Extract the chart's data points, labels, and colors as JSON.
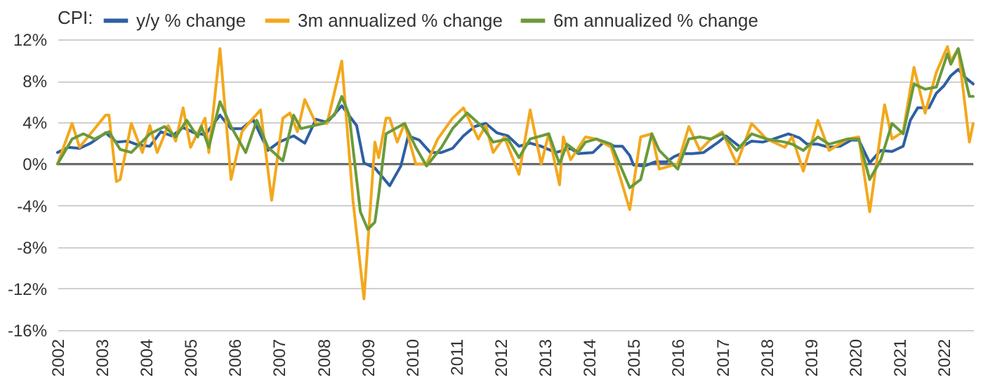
{
  "chart_data": {
    "type": "line",
    "legend_title": "CPI:",
    "legend": "top",
    "grid": "y",
    "marker": "none",
    "line_style": "solid",
    "xlim": [
      "2002-01",
      "2022-09"
    ],
    "xticks": [
      "2002",
      "2003",
      "2004",
      "2005",
      "2006",
      "2007",
      "2008",
      "2009",
      "2010",
      "2011",
      "2012",
      "2013",
      "2014",
      "2015",
      "2016",
      "2017",
      "2018",
      "2019",
      "2020",
      "2021",
      "2022"
    ],
    "ylim": [
      -16,
      12
    ],
    "yticks": [
      {
        "value": -16,
        "label": "-16%"
      },
      {
        "value": -12,
        "label": "-12%"
      },
      {
        "value": -8,
        "label": "-8%"
      },
      {
        "value": -4,
        "label": "-4%"
      },
      {
        "value": 0,
        "label": "0%"
      },
      {
        "value": 4,
        "label": "4%"
      },
      {
        "value": 8,
        "label": "8%"
      },
      {
        "value": 12,
        "label": "12%"
      }
    ],
    "ref_lines": [
      {
        "axis": "y",
        "value": 0,
        "color": "#595959"
      }
    ],
    "series": [
      {
        "name": "y/y % change",
        "color": "#2e5fa3",
        "x": [
          "2002-01",
          "2002-04",
          "2002-07",
          "2002-10",
          "2003-02",
          "2003-05",
          "2003-08",
          "2003-11",
          "2004-02",
          "2004-05",
          "2004-08",
          "2004-11",
          "2005-02",
          "2005-05",
          "2005-09",
          "2005-12",
          "2006-03",
          "2006-06",
          "2006-10",
          "2007-01",
          "2007-05",
          "2007-08",
          "2007-11",
          "2008-02",
          "2008-06",
          "2008-10",
          "2008-12",
          "2009-03",
          "2009-07",
          "2009-10",
          "2009-12",
          "2010-03",
          "2010-06",
          "2010-09",
          "2010-12",
          "2011-03",
          "2011-06",
          "2011-09",
          "2011-12",
          "2012-03",
          "2012-06",
          "2012-09",
          "2012-12",
          "2013-04",
          "2013-08",
          "2013-10",
          "2014-02",
          "2014-05",
          "2014-08",
          "2014-10",
          "2014-12",
          "2015-01",
          "2015-04",
          "2015-07",
          "2015-10",
          "2015-12",
          "2016-02",
          "2016-05",
          "2016-08",
          "2016-12",
          "2017-02",
          "2017-06",
          "2017-09",
          "2017-12",
          "2018-03",
          "2018-07",
          "2018-10",
          "2018-12",
          "2019-03",
          "2019-06",
          "2019-09",
          "2019-12",
          "2020-02",
          "2020-05",
          "2020-08",
          "2020-11",
          "2021-02",
          "2021-04",
          "2021-06",
          "2021-09",
          "2021-11",
          "2022-01",
          "2022-03",
          "2022-05",
          "2022-07",
          "2022-09"
        ],
        "values": [
          1.1,
          1.6,
          1.5,
          2.0,
          3.0,
          2.1,
          2.2,
          1.8,
          1.7,
          3.1,
          2.7,
          3.5,
          3.0,
          2.8,
          4.7,
          3.4,
          3.4,
          4.3,
          1.3,
          2.1,
          2.7,
          2.0,
          4.3,
          4.0,
          5.6,
          3.7,
          0.1,
          -0.4,
          -2.1,
          -0.2,
          2.7,
          2.3,
          1.1,
          1.1,
          1.5,
          2.7,
          3.6,
          3.9,
          3.0,
          2.7,
          1.7,
          2.0,
          1.7,
          1.1,
          1.5,
          1.0,
          1.1,
          2.1,
          1.7,
          1.7,
          0.8,
          -0.1,
          -0.2,
          0.2,
          0.2,
          0.7,
          1.0,
          1.0,
          1.1,
          2.1,
          2.7,
          1.6,
          2.2,
          2.1,
          2.4,
          2.9,
          2.5,
          1.9,
          1.9,
          1.6,
          1.7,
          2.3,
          2.3,
          0.1,
          1.3,
          1.2,
          1.7,
          4.2,
          5.4,
          5.4,
          6.8,
          7.5,
          8.5,
          9.1,
          8.3,
          7.7
        ]
      },
      {
        "name": "3m annualized % change",
        "color": "#f2a81d",
        "x": [
          "2002-01",
          "2002-05",
          "2002-07",
          "2002-09",
          "2003-02",
          "2003-03",
          "2003-05",
          "2003-06",
          "2003-09",
          "2003-12",
          "2004-02",
          "2004-04",
          "2004-07",
          "2004-09",
          "2004-11",
          "2005-01",
          "2005-05",
          "2005-06",
          "2005-09",
          "2005-12",
          "2006-03",
          "2006-05",
          "2006-08",
          "2006-11",
          "2007-02",
          "2007-04",
          "2007-06",
          "2007-08",
          "2007-11",
          "2008-02",
          "2008-06",
          "2008-09",
          "2008-12",
          "2009-03",
          "2009-04",
          "2009-06",
          "2009-07",
          "2009-09",
          "2009-11",
          "2010-02",
          "2010-05",
          "2010-08",
          "2010-12",
          "2011-03",
          "2011-07",
          "2011-09",
          "2011-11",
          "2012-02",
          "2012-06",
          "2012-09",
          "2012-12",
          "2013-02",
          "2013-05",
          "2013-06",
          "2013-08",
          "2013-12",
          "2014-03",
          "2014-07",
          "2014-12",
          "2015-03",
          "2015-06",
          "2015-08",
          "2016-01",
          "2016-04",
          "2016-07",
          "2016-10",
          "2017-01",
          "2017-05",
          "2017-09",
          "2018-01",
          "2018-06",
          "2018-08",
          "2018-11",
          "2019-03",
          "2019-06",
          "2019-11",
          "2020-02",
          "2020-05",
          "2020-09",
          "2020-11",
          "2021-02",
          "2021-05",
          "2021-08",
          "2021-11",
          "2022-02",
          "2022-03",
          "2022-05",
          "2022-08",
          "2022-09"
        ],
        "values": [
          0,
          3.9,
          1.6,
          2.5,
          4.7,
          4.7,
          -1.7,
          -1.5,
          3.9,
          1.1,
          3.7,
          1.1,
          3.7,
          2.2,
          5.4,
          1.6,
          4.4,
          1.1,
          11.1,
          -1.5,
          3.1,
          4.0,
          5.2,
          -3.5,
          4.4,
          4.9,
          3.1,
          6.2,
          3.9,
          3.9,
          9.9,
          -3.5,
          -13.0,
          2.1,
          0.6,
          4.4,
          4.4,
          2.1,
          3.9,
          0,
          0,
          2.4,
          4.4,
          5.4,
          2.4,
          3.7,
          1.1,
          2.6,
          -1.0,
          5.2,
          0,
          2.9,
          -2.0,
          2.6,
          0.4,
          2.6,
          2.4,
          1.6,
          -4.4,
          2.6,
          2.9,
          -0.5,
          0,
          3.6,
          1.3,
          2.4,
          3.1,
          0,
          3.9,
          2.4,
          1.6,
          2.6,
          -0.7,
          4.2,
          1.3,
          2.4,
          2.6,
          -4.6,
          5.7,
          2.4,
          3.1,
          9.3,
          4.9,
          8.8,
          11.3,
          9.9,
          11.1,
          2.1,
          3.9
        ]
      },
      {
        "name": "6m annualized % change",
        "color": "#6a9a3a",
        "x": [
          "2002-01",
          "2002-05",
          "2002-08",
          "2002-11",
          "2003-03",
          "2003-06",
          "2003-09",
          "2004-02",
          "2004-06",
          "2004-09",
          "2004-12",
          "2005-03",
          "2005-04",
          "2005-06",
          "2005-09",
          "2005-12",
          "2006-04",
          "2006-07",
          "2006-10",
          "2007-02",
          "2007-05",
          "2007-07",
          "2008-01",
          "2008-04",
          "2008-06",
          "2008-08",
          "2008-11",
          "2009-01",
          "2009-03",
          "2009-04",
          "2009-06",
          "2009-11",
          "2010-02",
          "2010-05",
          "2010-09",
          "2010-12",
          "2011-04",
          "2011-08",
          "2011-11",
          "2012-03",
          "2012-06",
          "2012-09",
          "2013-02",
          "2013-05",
          "2013-07",
          "2013-10",
          "2013-12",
          "2014-03",
          "2014-07",
          "2014-12",
          "2015-03",
          "2015-06",
          "2015-08",
          "2016-01",
          "2016-04",
          "2016-07",
          "2016-10",
          "2017-01",
          "2017-05",
          "2017-09",
          "2018-01",
          "2018-06",
          "2018-08",
          "2018-11",
          "2019-03",
          "2019-06",
          "2019-11",
          "2020-02",
          "2020-05",
          "2020-08",
          "2020-11",
          "2021-02",
          "2021-05",
          "2021-08",
          "2021-11",
          "2022-02",
          "2022-03",
          "2022-05",
          "2022-08",
          "2022-09"
        ],
        "values": [
          0,
          2.4,
          2.9,
          2.4,
          3.1,
          1.4,
          1.1,
          2.9,
          3.6,
          2.6,
          4.2,
          2.6,
          3.6,
          1.6,
          6.0,
          3.6,
          1.1,
          4.2,
          1.6,
          0.3,
          4.7,
          3.4,
          3.9,
          4.7,
          6.5,
          4.7,
          -4.6,
          -6.3,
          -5.6,
          -3.0,
          2.9,
          3.9,
          1.6,
          -0.2,
          1.6,
          3.4,
          4.9,
          3.6,
          2.1,
          2.4,
          0.6,
          2.4,
          2.9,
          0,
          1.9,
          1.1,
          2.1,
          2.4,
          1.9,
          -2.3,
          -1.5,
          2.9,
          1.3,
          -0.5,
          2.4,
          2.6,
          2.4,
          2.9,
          1.3,
          2.9,
          2.4,
          2.1,
          1.9,
          1.3,
          2.6,
          1.9,
          2.4,
          2.4,
          -1.5,
          0.4,
          3.9,
          2.9,
          7.7,
          7.2,
          7.4,
          10.6,
          9.6,
          11.1,
          6.5,
          6.5
        ]
      }
    ]
  }
}
